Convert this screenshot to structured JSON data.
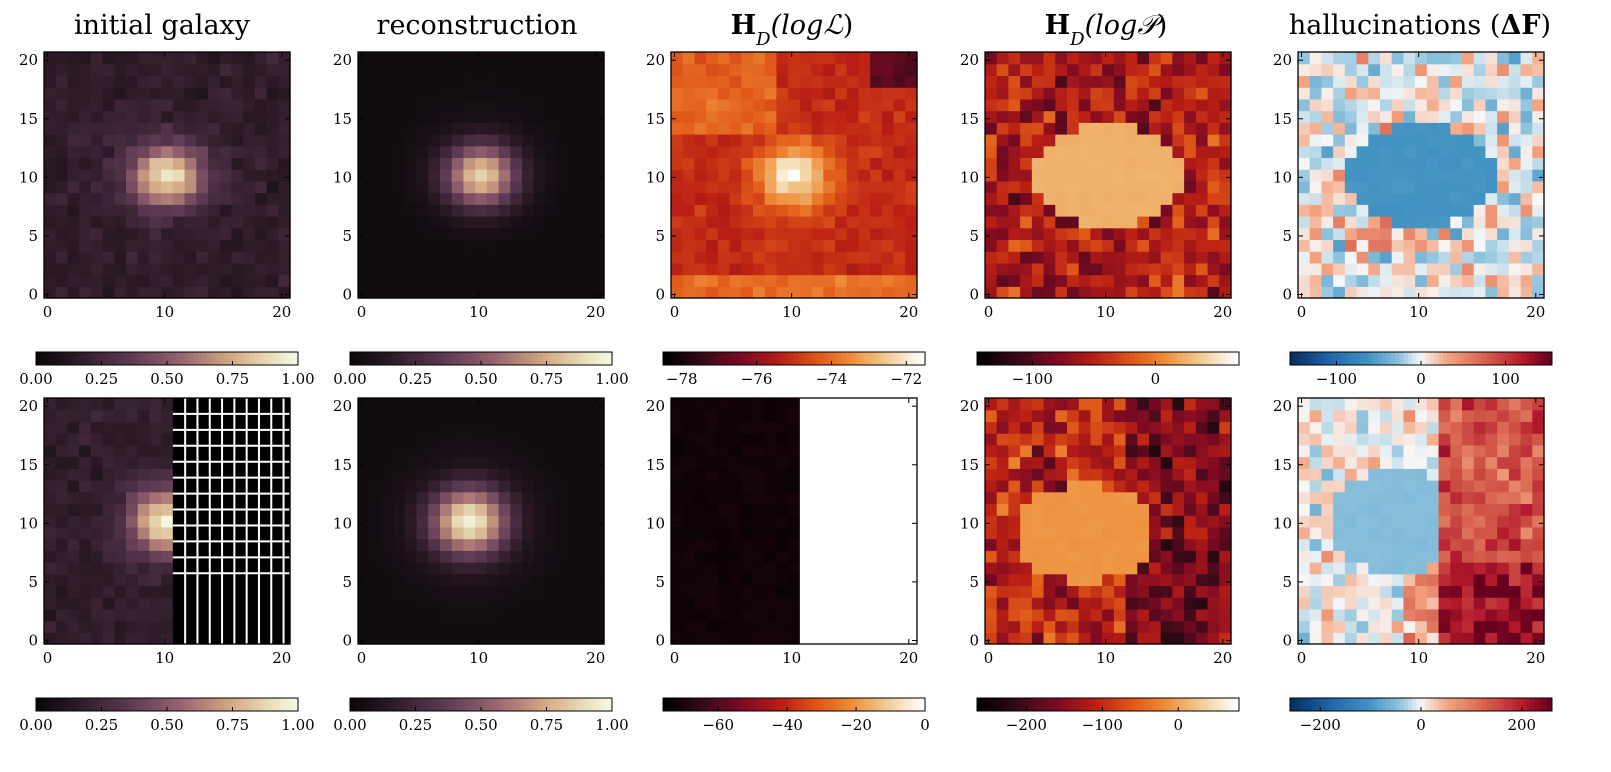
{
  "figure": {
    "titles": [
      {
        "parts": [
          {
            "text": "initial galaxy",
            "style": "normal"
          }
        ]
      },
      {
        "parts": [
          {
            "text": "reconstruction",
            "style": "normal"
          }
        ]
      },
      {
        "parts": [
          {
            "text": "H",
            "style": "bold"
          },
          {
            "text": "D",
            "style": "sub"
          },
          {
            "text": "(log",
            "style": "italic"
          },
          {
            "text": "ℒ",
            "style": "italic"
          },
          {
            "text": ")",
            "style": "normal"
          }
        ]
      },
      {
        "parts": [
          {
            "text": "H",
            "style": "bold"
          },
          {
            "text": "D",
            "style": "sub"
          },
          {
            "text": "(log",
            "style": "italic"
          },
          {
            "text": "𝒫",
            "style": "italic"
          },
          {
            "text": ")",
            "style": "normal"
          }
        ]
      },
      {
        "parts": [
          {
            "text": "hallucinations (",
            "style": "normal"
          },
          {
            "text": "ΔF",
            "style": "bold"
          },
          {
            "text": ")",
            "style": "normal"
          }
        ]
      }
    ]
  },
  "chart_data": [
    {
      "type": "heatmap",
      "name": "initial-galaxy",
      "row": 1,
      "col": 1,
      "cmap": "pink",
      "pattern": "galaxy_noisy",
      "grid_size": 21,
      "xlim": [
        0,
        21
      ],
      "ylim": [
        0,
        21
      ],
      "xticks": [
        0,
        10,
        20
      ],
      "yticks": [
        0,
        5,
        10,
        15,
        20
      ],
      "colorbar": {
        "vmin": 0.0,
        "vmax": 1.0,
        "ticks": [
          "0.00",
          "0.25",
          "0.50",
          "0.75",
          "1.00"
        ]
      }
    },
    {
      "type": "heatmap",
      "name": "reconstruction",
      "row": 1,
      "col": 2,
      "cmap": "pink",
      "pattern": "galaxy_smooth",
      "grid_size": 21,
      "xlim": [
        0,
        21
      ],
      "ylim": [
        0,
        21
      ],
      "xticks": [
        0,
        10,
        20
      ],
      "yticks": [
        0,
        5,
        10,
        15,
        20
      ],
      "colorbar": {
        "vmin": 0.0,
        "vmax": 1.0,
        "ticks": [
          "0.00",
          "0.25",
          "0.50",
          "0.75",
          "1.00"
        ]
      }
    },
    {
      "type": "heatmap",
      "name": "hd-log-likelihood",
      "row": 1,
      "col": 3,
      "cmap": "heat",
      "pattern": "likelihood",
      "grid_size": 21,
      "xlim": [
        0,
        21
      ],
      "ylim": [
        0,
        21
      ],
      "xticks": [
        0,
        10,
        20
      ],
      "yticks": [
        0,
        5,
        10,
        15,
        20
      ],
      "colorbar": {
        "vmin": -78.5,
        "vmax": -71.5,
        "ticks": [
          "−78",
          "−76",
          "−74",
          "−72"
        ],
        "tick_values": [
          -78,
          -76,
          -74,
          -72
        ]
      }
    },
    {
      "type": "heatmap",
      "name": "hd-log-prior",
      "row": 1,
      "col": 4,
      "cmap": "heat",
      "pattern": "prior",
      "grid_size": 21,
      "xlim": [
        0,
        21
      ],
      "ylim": [
        0,
        21
      ],
      "xticks": [
        0,
        10,
        20
      ],
      "yticks": [
        0,
        5,
        10,
        15,
        20
      ],
      "colorbar": {
        "vmin": -145,
        "vmax": 68,
        "ticks": [
          "−100",
          "0"
        ],
        "tick_values": [
          -100,
          0
        ]
      }
    },
    {
      "type": "heatmap",
      "name": "hallucinations",
      "row": 1,
      "col": 5,
      "cmap": "rdbu",
      "pattern": "halluc1",
      "grid_size": 21,
      "xlim": [
        0,
        21
      ],
      "ylim": [
        0,
        21
      ],
      "xticks": [
        0,
        10,
        20
      ],
      "yticks": [
        0,
        5,
        10,
        15,
        20
      ],
      "colorbar": {
        "vmin": -155,
        "vmax": 155,
        "ticks": [
          "−100",
          "0",
          "100"
        ],
        "tick_values": [
          -100,
          0,
          100
        ]
      }
    },
    {
      "type": "heatmap",
      "name": "initial-galaxy-masked",
      "row": 2,
      "col": 1,
      "cmap": "pink",
      "pattern": "galaxy_masked",
      "grid_size": 21,
      "xlim": [
        0,
        21
      ],
      "ylim": [
        0,
        21
      ],
      "xticks": [
        0,
        10,
        20
      ],
      "yticks": [
        0,
        5,
        10,
        15,
        20
      ],
      "colorbar": {
        "vmin": 0.0,
        "vmax": 1.0,
        "ticks": [
          "0.00",
          "0.25",
          "0.50",
          "0.75",
          "1.00"
        ]
      }
    },
    {
      "type": "heatmap",
      "name": "reconstruction-masked",
      "row": 2,
      "col": 2,
      "cmap": "pink",
      "pattern": "galaxy_smooth2",
      "grid_size": 21,
      "xlim": [
        0,
        21
      ],
      "ylim": [
        0,
        21
      ],
      "xticks": [
        0,
        10,
        20
      ],
      "yticks": [
        0,
        5,
        10,
        15,
        20
      ],
      "colorbar": {
        "vmin": 0.0,
        "vmax": 1.0,
        "ticks": [
          "0.00",
          "0.25",
          "0.50",
          "0.75",
          "1.00"
        ]
      }
    },
    {
      "type": "heatmap",
      "name": "hd-log-likelihood-masked",
      "row": 2,
      "col": 3,
      "cmap": "heat",
      "pattern": "likelihood_masked",
      "grid_size": 21,
      "xlim": [
        0,
        21
      ],
      "ylim": [
        0,
        21
      ],
      "xticks": [
        0,
        10,
        20
      ],
      "yticks": [
        0,
        5,
        10,
        15,
        20
      ],
      "colorbar": {
        "vmin": -76,
        "vmax": 0,
        "ticks": [
          "−60",
          "−40",
          "−20",
          "0"
        ],
        "tick_values": [
          -60,
          -40,
          -20,
          0
        ]
      }
    },
    {
      "type": "heatmap",
      "name": "hd-log-prior-masked",
      "row": 2,
      "col": 4,
      "cmap": "heat",
      "pattern": "prior2",
      "grid_size": 21,
      "xlim": [
        0,
        21
      ],
      "ylim": [
        0,
        21
      ],
      "xticks": [
        0,
        10,
        20
      ],
      "yticks": [
        0,
        5,
        10,
        15,
        20
      ],
      "colorbar": {
        "vmin": -265,
        "vmax": 80,
        "ticks": [
          "−200",
          "−100",
          "0"
        ],
        "tick_values": [
          -200,
          -100,
          0
        ]
      }
    },
    {
      "type": "heatmap",
      "name": "hallucinations-masked",
      "row": 2,
      "col": 5,
      "cmap": "rdbu",
      "pattern": "halluc2",
      "grid_size": 21,
      "xlim": [
        0,
        21
      ],
      "ylim": [
        0,
        21
      ],
      "xticks": [
        0,
        10,
        20
      ],
      "yticks": [
        0,
        5,
        10,
        15,
        20
      ],
      "colorbar": {
        "vmin": -260,
        "vmax": 260,
        "ticks": [
          "−200",
          "0",
          "200"
        ],
        "tick_values": [
          -200,
          0,
          200
        ]
      }
    }
  ]
}
